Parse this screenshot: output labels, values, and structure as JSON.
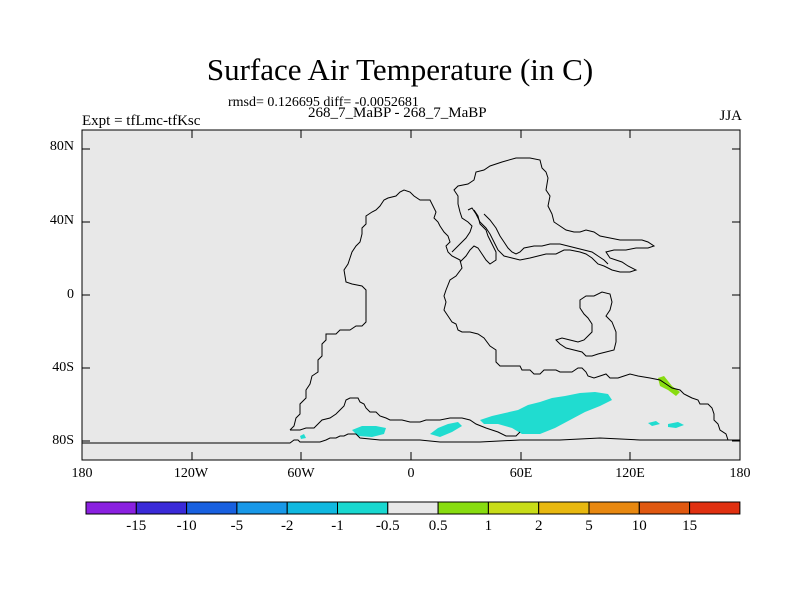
{
  "title": "Surface Air Temperature (in C)",
  "stats_line": "rmsd= 0.126695 diff= -0.0052681",
  "experiment": "Expt = tfLmc-tfKsc",
  "period": "268_7_MaBP - 268_7_MaBP",
  "season": "JJA",
  "colors": {
    "background": "#e8e8e8",
    "coast": "#000000",
    "anomaly_neg_small": "#20dcd0",
    "anomaly_pos_small": "#88dc10"
  },
  "lat_labels": [
    "80N",
    "40N",
    "0",
    "40S",
    "80S"
  ],
  "lon_labels": [
    "180",
    "120W",
    "60W",
    "0",
    "60E",
    "120E",
    "180"
  ],
  "colorbar": {
    "colors": [
      "#8a20e0",
      "#3a2ad8",
      "#1860e0",
      "#1898e8",
      "#10b8e0",
      "#18d8d0",
      "#e8e8e8",
      "#88dc10",
      "#c8dc18",
      "#e8b810",
      "#e88810",
      "#e05810",
      "#e03010"
    ],
    "labels": [
      "-15",
      "-10",
      "-5",
      "-2",
      "-1",
      "-0.5",
      "0.5",
      "1",
      "2",
      "5",
      "10",
      "15"
    ]
  }
}
